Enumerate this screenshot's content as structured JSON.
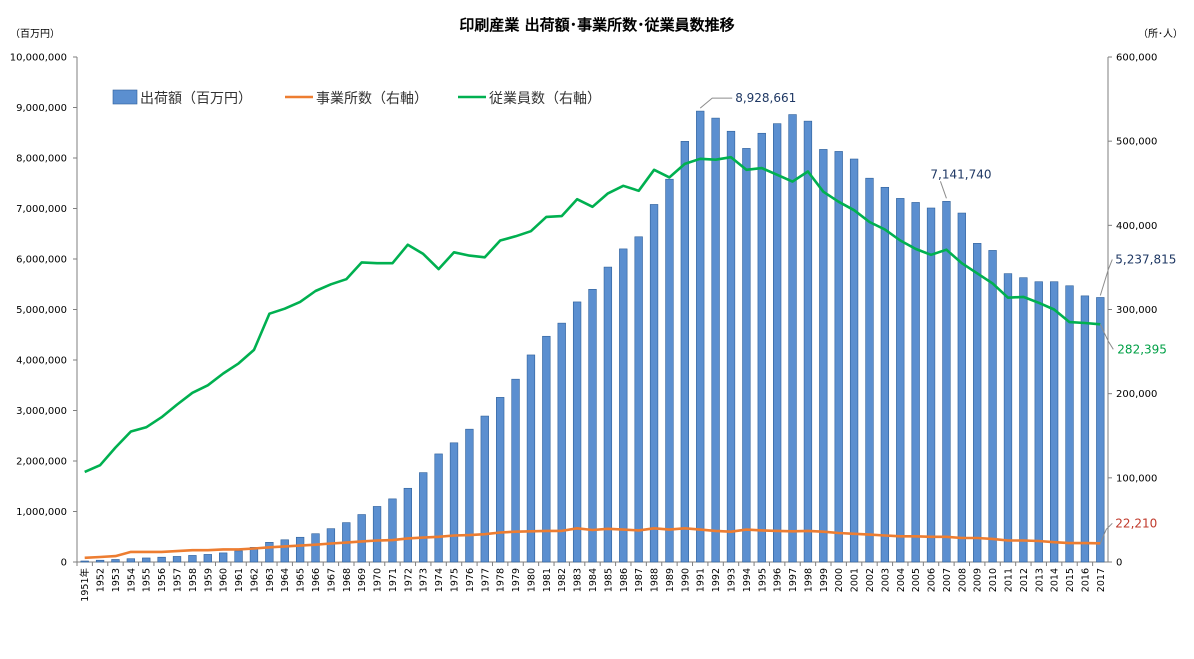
{
  "chart_data": {
    "type": "bar",
    "title": "印刷産業 出荷額･事業所数･従業員数推移",
    "left_unit": "（百万円）",
    "right_unit": "（所･人）",
    "left_ylim": [
      0,
      10000000
    ],
    "right_ylim": [
      0,
      600000
    ],
    "left_ticks": [
      "0",
      "1,000,000",
      "2,000,000",
      "3,000,000",
      "4,000,000",
      "5,000,000",
      "6,000,000",
      "7,000,000",
      "8,000,000",
      "9,000,000",
      "10,000,000"
    ],
    "right_ticks": [
      "0",
      "100,000",
      "200,000",
      "300,000",
      "400,000",
      "500,000",
      "600,000"
    ],
    "legend_position": "top-left",
    "colors": {
      "bar": "#5b8fd0",
      "bar_edge": "#2e5f99",
      "establishments": "#ed7d31",
      "employees": "#00b050",
      "label_blue": "#1f3864",
      "label_red": "#c0392b",
      "label_green": "#00a046",
      "leader": "#8c8c8c"
    },
    "x": [
      "1951年",
      "1952",
      "1953",
      "1954",
      "1955",
      "1956",
      "1957",
      "1958",
      "1959",
      "1960",
      "1961",
      "1962",
      "1963",
      "1964",
      "1965",
      "1966",
      "1967",
      "1968",
      "1969",
      "1970",
      "1971",
      "1972",
      "1973",
      "1974",
      "1975",
      "1976",
      "1977",
      "1978",
      "1979",
      "1980",
      "1981",
      "1982",
      "1983",
      "1984",
      "1985",
      "1986",
      "1987",
      "1988",
      "1989",
      "1990",
      "1991",
      "1992",
      "1993",
      "1994",
      "1995",
      "1996",
      "1997",
      "1998",
      "1999",
      "2000",
      "2001",
      "2002",
      "2003",
      "2004",
      "2005",
      "2006",
      "2007",
      "2008",
      "2009",
      "2010",
      "2011",
      "2012",
      "2013",
      "2014",
      "2015",
      "2016",
      "2017"
    ],
    "series": [
      {
        "name": "出荷額（百万円）",
        "axis": "left",
        "kind": "bar",
        "values": [
          20000,
          35000,
          50000,
          65000,
          80000,
          95000,
          110000,
          130000,
          150000,
          180000,
          220000,
          290000,
          390000,
          440000,
          490000,
          560000,
          660000,
          780000,
          940000,
          1100000,
          1250000,
          1460000,
          1770000,
          2140000,
          2360000,
          2630000,
          2890000,
          3260000,
          3620000,
          4100000,
          4470000,
          4730000,
          5150000,
          5400000,
          5840000,
          6200000,
          6440000,
          7080000,
          7580000,
          8330000,
          8928661,
          8790000,
          8530000,
          8190000,
          8490000,
          8680000,
          8860000,
          8730000,
          8170000,
          8130000,
          7980000,
          7600000,
          7420000,
          7200000,
          7120000,
          7010000,
          7141740,
          6910000,
          6310000,
          6170000,
          5710000,
          5630000,
          5550000,
          5550000,
          5470000,
          5270000,
          5237815
        ]
      },
      {
        "name": "事業所数（右軸）",
        "axis": "right",
        "kind": "line",
        "values": [
          5000,
          6000,
          7000,
          12000,
          12000,
          12000,
          13000,
          14000,
          14000,
          15000,
          15000,
          16000,
          17500,
          18500,
          19500,
          20500,
          22000,
          23000,
          24500,
          25500,
          26000,
          28000,
          29000,
          30000,
          31500,
          32000,
          33000,
          35000,
          36000,
          36500,
          37000,
          37000,
          40000,
          38000,
          39500,
          38500,
          37500,
          40000,
          38500,
          40000,
          38500,
          37000,
          36000,
          38500,
          37500,
          37000,
          36500,
          37000,
          36000,
          34500,
          33500,
          32500,
          31500,
          30500,
          30500,
          30000,
          30000,
          28500,
          28500,
          27500,
          25500,
          25500,
          25000,
          23500,
          22500,
          22500,
          22210
        ]
      },
      {
        "name": "従業員数（右軸）",
        "axis": "right",
        "kind": "line",
        "values": [
          107000,
          115000,
          136000,
          155000,
          160000,
          172000,
          187000,
          201000,
          210000,
          224000,
          236000,
          252000,
          295000,
          301000,
          309000,
          322000,
          330000,
          336000,
          356000,
          355000,
          355000,
          377000,
          366000,
          348000,
          368000,
          364000,
          362000,
          382000,
          387000,
          393000,
          410000,
          411000,
          431000,
          422000,
          438000,
          447000,
          441000,
          466000,
          457000,
          473000,
          479000,
          478000,
          481000,
          466000,
          468000,
          460000,
          452000,
          464000,
          440000,
          428000,
          418000,
          404000,
          395000,
          382000,
          372000,
          365000,
          371000,
          355000,
          343000,
          331000,
          314000,
          315000,
          308000,
          300000,
          285000,
          284000,
          282395
        ]
      }
    ],
    "annotations": [
      {
        "text": "8,928,661",
        "color": "label_blue"
      },
      {
        "text": "7,141,740",
        "color": "label_blue"
      },
      {
        "text": "5,237,815",
        "color": "label_blue"
      },
      {
        "text": "282,395",
        "color": "label_green"
      },
      {
        "text": "22,210",
        "color": "label_red"
      }
    ]
  }
}
